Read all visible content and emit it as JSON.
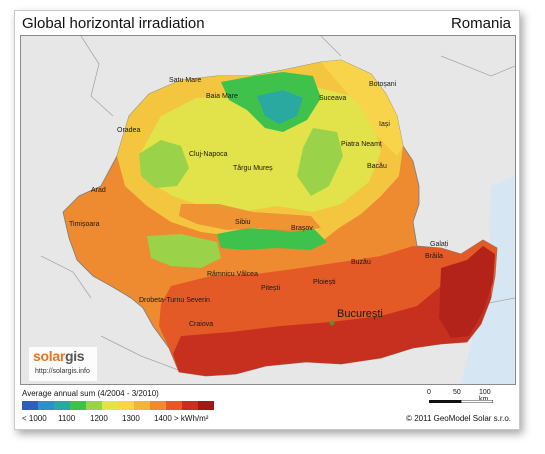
{
  "title": "Global horizontal irradiation",
  "country": "Romania",
  "logo": {
    "word_a": "solar",
    "word_b": "gis",
    "url": "http://solargis.info"
  },
  "legend": {
    "caption": "Average annual sum (4/2004 - 3/2010)",
    "colors": [
      "#2f5fb8",
      "#2f8fc8",
      "#2aa9a0",
      "#3fc24c",
      "#9ad24a",
      "#e2e24a",
      "#f7d44a",
      "#f4b23e",
      "#ee8a30",
      "#e45a26",
      "#c72f1f",
      "#9e1a14"
    ],
    "ticks": [
      "< 1000",
      "1100",
      "1200",
      "1300",
      "1400 > kWh/m²"
    ]
  },
  "scale": {
    "labels": [
      "0",
      "50",
      "100 km"
    ]
  },
  "copyright": "© 2011 GeoModel Solar s.r.o.",
  "cities": {
    "satu_mare": "Satu Mare",
    "baia_mare": "Baia Mare",
    "suceava": "Suceava",
    "botosani": "Botoșani",
    "iasi": "Iași",
    "oradea": "Oradea",
    "piatra_neamt": "Piatra Neamț",
    "cluj_napoca": "Cluj-Napoca",
    "targu_mures": "Târgu Mureș",
    "bacau": "Bacău",
    "arad": "Arad",
    "timisoara": "Timișoara",
    "sibiu": "Sibiu",
    "brasov": "Brașov",
    "galati": "Galați",
    "braila": "Brăila",
    "buzau": "Buzău",
    "ramnicu_valcea": "Râmnicu Vâlcea",
    "pitesti": "Pitești",
    "ploiesti": "Ploiești",
    "drobeta": "Drobeta-Turnu Severin",
    "bucuresti": "București",
    "craiova": "Craiova"
  }
}
